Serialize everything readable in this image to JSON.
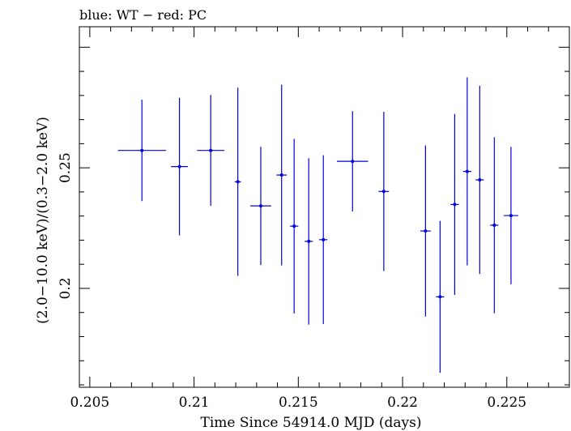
{
  "chart_data": {
    "type": "scatter",
    "title": "blue: WT − red: PC",
    "xlabel": "Time Since 54914.0 MJD (days)",
    "ylabel": "(2.0−10.0 keV)/(0.3−2.0 keV)",
    "xlim": [
      0.2045,
      0.228
    ],
    "ylim": [
      0.159,
      0.3085
    ],
    "x_ticks": [
      {
        "value": 0.205,
        "label": "0.205"
      },
      {
        "value": 0.21,
        "label": "0.21"
      },
      {
        "value": 0.215,
        "label": "0.215"
      },
      {
        "value": 0.22,
        "label": "0.22"
      },
      {
        "value": 0.225,
        "label": "0.225"
      }
    ],
    "y_ticks": [
      {
        "value": 0.2,
        "label": "0.2"
      },
      {
        "value": 0.25,
        "label": "0.25"
      }
    ],
    "series": [
      {
        "color": "#0000dd",
        "points": [
          {
            "x": 0.2075,
            "xerr": 0.00115,
            "y": 0.2572,
            "yerr": 0.021
          },
          {
            "x": 0.2093,
            "xerr": 0.0004,
            "y": 0.2505,
            "yerr": 0.0285
          },
          {
            "x": 0.2108,
            "xerr": 0.00065,
            "y": 0.2572,
            "yerr": 0.023
          },
          {
            "x": 0.2121,
            "xerr": 0.00015,
            "y": 0.2442,
            "yerr": 0.039
          },
          {
            "x": 0.2132,
            "xerr": 0.0005,
            "y": 0.2342,
            "yerr": 0.0245
          },
          {
            "x": 0.2142,
            "xerr": 0.00025,
            "y": 0.247,
            "yerr": 0.0375
          },
          {
            "x": 0.2148,
            "xerr": 0.0002,
            "y": 0.2258,
            "yerr": 0.0362
          },
          {
            "x": 0.2155,
            "xerr": 0.0002,
            "y": 0.2195,
            "yerr": 0.0345
          },
          {
            "x": 0.2162,
            "xerr": 0.0002,
            "y": 0.2202,
            "yerr": 0.035
          },
          {
            "x": 0.2176,
            "xerr": 0.00075,
            "y": 0.2527,
            "yerr": 0.0208
          },
          {
            "x": 0.2191,
            "xerr": 0.00025,
            "y": 0.2402,
            "yerr": 0.033
          },
          {
            "x": 0.2211,
            "xerr": 0.00025,
            "y": 0.2238,
            "yerr": 0.0355
          },
          {
            "x": 0.2218,
            "xerr": 0.0002,
            "y": 0.1965,
            "yerr": 0.0315
          },
          {
            "x": 0.2225,
            "xerr": 0.0002,
            "y": 0.2348,
            "yerr": 0.0375
          },
          {
            "x": 0.2231,
            "xerr": 0.0002,
            "y": 0.2485,
            "yerr": 0.039
          },
          {
            "x": 0.2237,
            "xerr": 0.0002,
            "y": 0.245,
            "yerr": 0.039
          },
          {
            "x": 0.2244,
            "xerr": 0.0002,
            "y": 0.2262,
            "yerr": 0.0365
          },
          {
            "x": 0.2252,
            "xerr": 0.00035,
            "y": 0.2302,
            "yerr": 0.0285
          }
        ]
      }
    ]
  }
}
